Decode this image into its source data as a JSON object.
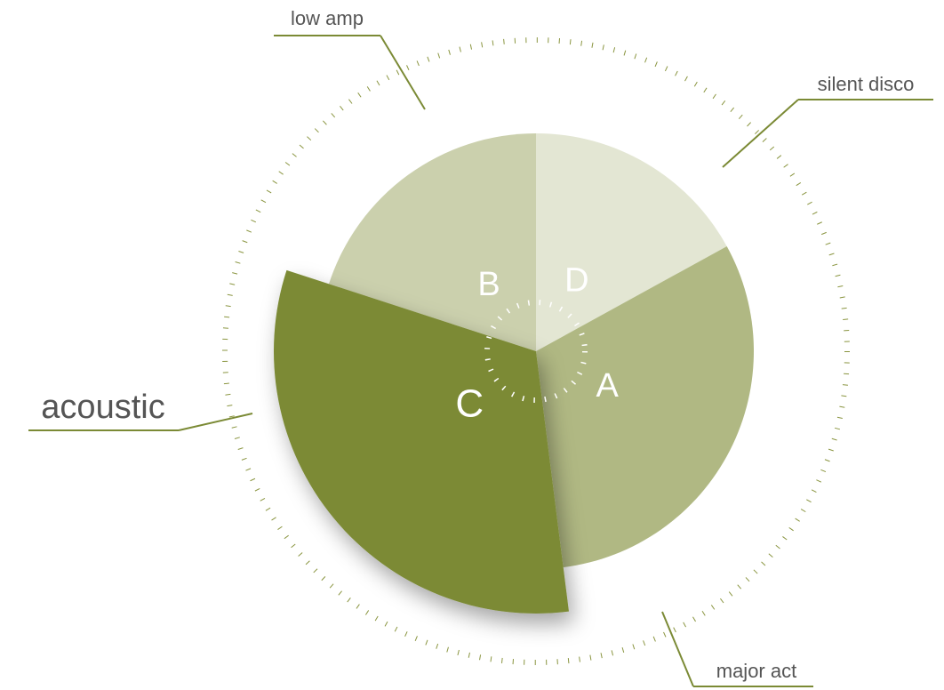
{
  "chart_data": {
    "type": "pie",
    "categories": [
      "D",
      "A",
      "C",
      "B"
    ],
    "values": [
      17,
      31,
      32,
      20
    ],
    "colors": [
      "#e3e6d3",
      "#b0b883",
      "#7b8a35",
      "#cbd0ad"
    ],
    "highlight": 2,
    "callouts": [
      "low amp",
      "silent disco",
      "acoustic",
      "major act"
    ]
  }
}
